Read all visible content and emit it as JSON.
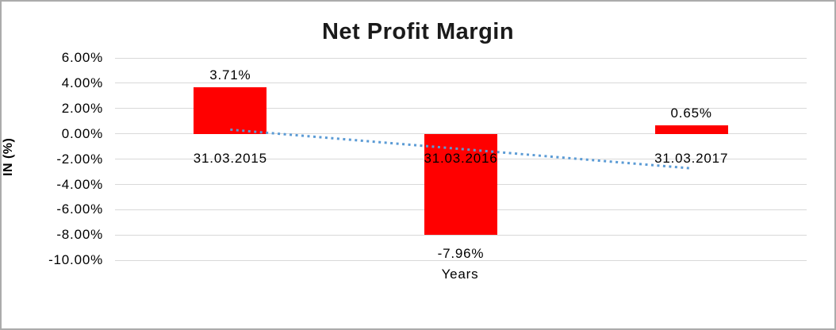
{
  "window": {
    "background": "#FFFFFF",
    "border_color": "#ABABAB"
  },
  "chart_data": {
    "type": "bar",
    "title": "Net Profit Margin",
    "xlabel": "Years",
    "ylabel": "IN (%)",
    "categories": [
      "31.03.2015",
      "31.03.2016",
      "31.03.2017"
    ],
    "values": [
      3.71,
      -7.96,
      0.65
    ],
    "data_labels": [
      "3.71%",
      "-7.96%",
      "0.65%"
    ],
    "ylim": [
      -10,
      6
    ],
    "y_tick_step": 2,
    "y_tick_labels": [
      "6.00%",
      "4.00%",
      "2.00%",
      "0.00%",
      "-2.00%",
      "-4.00%",
      "-6.00%",
      "-8.00%",
      "-10.00%"
    ],
    "grid": true,
    "legend": false,
    "bar_color": "#FF0000",
    "gridline_color": "#D9D9D9",
    "text_color": "#000000",
    "trendline": {
      "style": "dotted",
      "color": "#5B9BD5",
      "values": [
        0.33,
        -1.2,
        -2.73
      ]
    }
  }
}
